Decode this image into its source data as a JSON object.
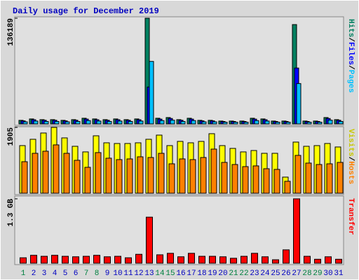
{
  "chart_data": [
    {
      "type": "bar",
      "title": "Daily usage for December 2019",
      "legend_separator": "/",
      "ylim": [
        0,
        136189
      ],
      "yticks": [
        136189
      ],
      "series": [
        {
          "name": "Hits",
          "color": "#008060",
          "values": [
            4600,
            6400,
            5500,
            5500,
            4600,
            5500,
            7300,
            6400,
            5500,
            6400,
            5500,
            6400,
            136189,
            7300,
            8200,
            5500,
            7300,
            4600,
            4600,
            3700,
            3700,
            3700,
            7300,
            6400,
            3700,
            3700,
            128000,
            3700,
            3700,
            8200,
            5500
          ]
        },
        {
          "name": "Files",
          "color": "#0000ff",
          "values": [
            3900,
            5400,
            4700,
            4700,
            3900,
            4700,
            6200,
            5400,
            4700,
            5400,
            4700,
            5400,
            47500,
            6200,
            7000,
            4700,
            6200,
            3900,
            3900,
            3100,
            3100,
            3100,
            6200,
            5400,
            3100,
            3100,
            72000,
            3100,
            3100,
            7000,
            4700
          ]
        },
        {
          "name": "Pages",
          "color": "#00c0ff",
          "values": [
            2700,
            3700,
            3200,
            3200,
            2700,
            3200,
            4300,
            3700,
            3200,
            3700,
            3200,
            3700,
            80500,
            4300,
            4800,
            3200,
            4300,
            2700,
            2700,
            2200,
            2200,
            2200,
            4300,
            3700,
            2200,
            2200,
            52000,
            2200,
            2200,
            4800,
            3200
          ]
        }
      ]
    },
    {
      "type": "bar",
      "legend_separator": "/",
      "ylim": [
        0,
        1905
      ],
      "yticks": [
        1905
      ],
      "series": [
        {
          "name": "Visits",
          "color": "#ffff00",
          "values": [
            1378,
            1561,
            1743,
            1905,
            1601,
            1358,
            1196,
            1662,
            1459,
            1439,
            1439,
            1459,
            1561,
            1682,
            1378,
            1500,
            1459,
            1500,
            1723,
            1378,
            1297,
            1196,
            1236,
            1155,
            1155,
            466,
            1480,
            1358,
            1378,
            1439,
            1338
          ]
        },
        {
          "name": "Hosts",
          "color": "#ff8000",
          "values": [
            912,
            1155,
            1216,
            1399,
            1155,
            953,
            750,
            1176,
            1014,
            973,
            993,
            1054,
            1034,
            1155,
            851,
            993,
            973,
            1034,
            1277,
            892,
            831,
            770,
            791,
            709,
            689,
            345,
            1095,
            872,
            831,
            851,
            892
          ]
        }
      ]
    },
    {
      "type": "bar",
      "ylim": [
        0,
        1.3
      ],
      "yticks": [
        {
          "value": 1.3,
          "label": "1.3 GB"
        }
      ],
      "categories": [
        "1",
        "2",
        "3",
        "4",
        "5",
        "6",
        "7",
        "8",
        "9",
        "10",
        "11",
        "12",
        "13",
        "14",
        "15",
        "16",
        "17",
        "18",
        "19",
        "20",
        "21",
        "22",
        "23",
        "24",
        "25",
        "26",
        "27",
        "28",
        "29",
        "30",
        "31"
      ],
      "category_colors": [
        "#008040",
        "#0000c0",
        "#0000c0",
        "#0000c0",
        "#0000c0",
        "#0000c0",
        "#008040",
        "#008040",
        "#0000c0",
        "#0000c0",
        "#0000c0",
        "#0000c0",
        "#0000c0",
        "#008040",
        "#008040",
        "#0000c0",
        "#0000c0",
        "#0000c0",
        "#0000c0",
        "#0000c0",
        "#008040",
        "#008040",
        "#0000c0",
        "#0000c0",
        "#0000c0",
        "#0000c0",
        "#0000c0",
        "#008040",
        "#008040",
        "#0000c0",
        "#0000c0"
      ],
      "series": [
        {
          "name": "Transfer",
          "color": "#ff0000",
          "values": [
            0.11,
            0.16,
            0.14,
            0.16,
            0.14,
            0.13,
            0.14,
            0.16,
            0.13,
            0.14,
            0.11,
            0.18,
            0.93,
            0.17,
            0.2,
            0.13,
            0.2,
            0.14,
            0.14,
            0.13,
            0.1,
            0.14,
            0.2,
            0.13,
            0.07,
            0.27,
            1.3,
            0.14,
            0.08,
            0.13,
            0.08
          ]
        }
      ]
    }
  ]
}
